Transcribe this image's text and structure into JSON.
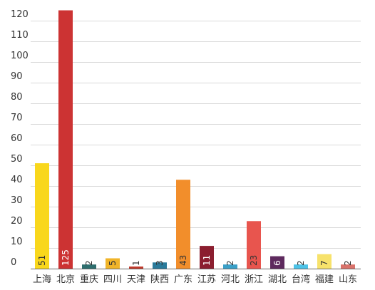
{
  "chart_data": {
    "type": "bar",
    "categories": [
      "上海",
      "北京",
      "重庆",
      "四川",
      "天津",
      "陕西",
      "广东",
      "江苏",
      "河北",
      "浙江",
      "湖北",
      "台湾",
      "福建",
      "山东"
    ],
    "values": [
      51,
      125,
      2,
      5,
      1,
      3,
      43,
      11,
      2,
      23,
      6,
      2,
      7,
      2
    ],
    "data_labels": [
      "51",
      "125",
      "2",
      "5",
      "1",
      "3",
      "43",
      "11",
      "2",
      "23",
      "6",
      "2",
      "7",
      "2"
    ],
    "colors": [
      "#f9d71c",
      "#cc3333",
      "#2d6e6e",
      "#f0b429",
      "#c0392b",
      "#2a7a9a",
      "#f28e2b",
      "#8b1e2f",
      "#3aa0c8",
      "#e8554e",
      "#5e2a5e",
      "#4dc3e8",
      "#f7e26b",
      "#d9726b"
    ],
    "label_colors": [
      "#333333",
      "#ffffff",
      "#333333",
      "#333333",
      "#333333",
      "#333333",
      "#333333",
      "#ffffff",
      "#333333",
      "#333333",
      "#ffffff",
      "#333333",
      "#333333",
      "#333333"
    ],
    "yticks": [
      "0",
      "10",
      "20",
      "30",
      "40",
      "50",
      "60",
      "70",
      "80",
      "90",
      "100",
      "110",
      "120"
    ],
    "ylim": [
      0,
      125
    ],
    "grid": true,
    "legend": "none",
    "title": "",
    "xlabel": "",
    "ylabel": ""
  }
}
